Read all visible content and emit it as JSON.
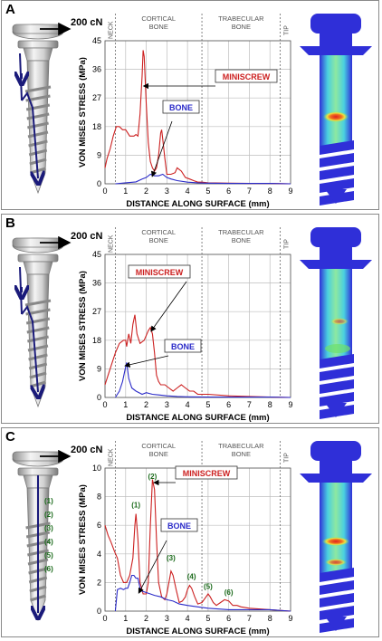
{
  "colors": {
    "miniscrew": "#cc2020",
    "bone": "#2a2ac8",
    "screw_arrow": "#1a1a7a",
    "fem_blue": "#2f2fd8",
    "fem_cyan": "#4ad0e0",
    "fem_green": "#6ee06a",
    "fem_yellow": "#f0e040",
    "fem_red": "#e02020"
  },
  "icons": [
    "miniscrew-drawing-icon",
    "force-arrow-icon",
    "fem-stress-model-icon"
  ],
  "panels": [
    {
      "letter": "A",
      "force_label": "200 cN",
      "region_labels": [
        "NECK",
        "CORTICAL BONE",
        "TRABECULAR BONE",
        "TIP"
      ],
      "callouts": [
        "MINISCREW",
        "BONE"
      ],
      "chart_data": {
        "type": "line",
        "xlabel": "DISTANCE ALONG SURFACE (mm)",
        "ylabel": "VON MISES STRESS (MPa)",
        "xlim": [
          0,
          9
        ],
        "ylim": [
          0,
          45
        ],
        "xticks": [
          "0",
          "1",
          "2",
          "3",
          "4",
          "5",
          "6",
          "7",
          "8",
          "9"
        ],
        "yticks": [
          "0",
          "9",
          "18",
          "27",
          "36",
          "45"
        ],
        "region_boundaries_mm": [
          0.5,
          4.7,
          8.5
        ],
        "grid": true,
        "series": [
          {
            "name": "MINISCREW",
            "x": [
              0,
              0.1,
              0.25,
              0.4,
              0.55,
              0.7,
              0.85,
              1.0,
              1.1,
              1.2,
              1.3,
              1.4,
              1.5,
              1.6,
              1.7,
              1.8,
              1.85,
              1.9,
              2.0,
              2.1,
              2.2,
              2.3,
              2.4,
              2.5,
              2.6,
              2.7,
              2.75,
              2.8,
              2.9,
              3.0,
              3.2,
              3.4,
              3.5,
              3.7,
              3.9,
              4.1,
              4.3,
              4.5,
              4.7,
              5,
              6,
              7,
              8,
              9
            ],
            "y": [
              5,
              8,
              11,
              15,
              18,
              18,
              17,
              17,
              16,
              15,
              15,
              15,
              15.5,
              15,
              22,
              34,
              42,
              40,
              25,
              13,
              7,
              5,
              4,
              5,
              9,
              16,
              17,
              14,
              8,
              3,
              3,
              3.5,
              5,
              4,
              2,
              1.5,
              1,
              0.5,
              0.5,
              0.3,
              0.2,
              0.1,
              0.1,
              0
            ]
          },
          {
            "name": "BONE",
            "x": [
              0.5,
              1.0,
              1.5,
              1.8,
              2.0,
              2.2,
              2.4,
              2.6,
              2.8,
              3.0,
              3.2,
              3.5,
              4.0,
              4.5,
              5,
              6,
              7,
              8,
              9
            ],
            "y": [
              0,
              0.3,
              0.6,
              1.5,
              2,
              3,
              2.5,
              2.5,
              3,
              2,
              1.5,
              1,
              0.5,
              0.3,
              0.2,
              0.1,
              0.1,
              0.1,
              0
            ]
          }
        ]
      }
    },
    {
      "letter": "B",
      "force_label": "200 cN",
      "region_labels": [
        "NECK",
        "CORTICAL BONE",
        "TRABECULAR BONE",
        "TIP"
      ],
      "callouts": [
        "MINISCREW",
        "BONE"
      ],
      "chart_data": {
        "type": "line",
        "xlabel": "DISTANCE ALONG SURFACE (mm)",
        "ylabel": "VON MISES STRESS (MPa)",
        "xlim": [
          0,
          9
        ],
        "ylim": [
          0,
          45
        ],
        "xticks": [
          "0",
          "1",
          "2",
          "3",
          "4",
          "5",
          "6",
          "7",
          "8",
          "9"
        ],
        "yticks": [
          "0",
          "9",
          "18",
          "27",
          "36",
          "45"
        ],
        "region_boundaries_mm": [
          0.5,
          4.7,
          8.5
        ],
        "grid": true,
        "series": [
          {
            "name": "MINISCREW",
            "x": [
              0,
              0.15,
              0.3,
              0.5,
              0.7,
              0.9,
              1.0,
              1.05,
              1.15,
              1.25,
              1.35,
              1.45,
              1.55,
              1.7,
              1.9,
              2.1,
              2.2,
              2.3,
              2.4,
              2.5,
              2.6,
              2.7,
              2.9,
              3.1,
              3.3,
              3.5,
              3.7,
              3.9,
              4.1,
              4.3,
              4.5,
              4.7,
              5,
              6,
              7,
              8,
              9
            ],
            "y": [
              4,
              7,
              10,
              14,
              17,
              18,
              18,
              16,
              20,
              17,
              23,
              26,
              20,
              17,
              18,
              21,
              22,
              20,
              14,
              7,
              5,
              4,
              4,
              3,
              2,
              3,
              4,
              3,
              2,
              2,
              1,
              1,
              1,
              0.5,
              0.3,
              0.1,
              0
            ]
          },
          {
            "name": "BONE",
            "x": [
              0.5,
              0.7,
              0.85,
              0.95,
              1.05,
              1.15,
              1.3,
              1.5,
              1.8,
              2.0,
              2.3,
              2.6,
              3.0,
              3.5,
              4,
              5,
              6,
              7,
              8,
              9
            ],
            "y": [
              0,
              2,
              5,
              8,
              11,
              6,
              3,
              2,
              1,
              1.5,
              1,
              0.8,
              0.5,
              0.3,
              0.2,
              0.1,
              0.1,
              0.1,
              0.1,
              0
            ]
          }
        ]
      }
    },
    {
      "letter": "C",
      "force_label": "200 cN",
      "region_labels": [
        "NECK",
        "CORTICAL BONE",
        "TRABECULAR BONE",
        "TIP"
      ],
      "callouts": [
        "MINISCREW",
        "BONE"
      ],
      "peak_labels": [
        "(1)",
        "(2)",
        "(3)",
        "(4)",
        "(5)",
        "(6)"
      ],
      "peak_positions": [
        {
          "x": 1.5,
          "y": 7.0
        },
        {
          "x": 2.3,
          "y": 9.0
        },
        {
          "x": 3.2,
          "y": 3.3
        },
        {
          "x": 4.2,
          "y": 2.0
        },
        {
          "x": 5.0,
          "y": 1.3
        },
        {
          "x": 6.0,
          "y": 0.9
        }
      ],
      "chart_data": {
        "type": "line",
        "xlabel": "DISTANCE ALONG SURFACE (mm)",
        "ylabel": "VON MISES STRESS (MPa)",
        "xlim": [
          0,
          9
        ],
        "ylim": [
          0,
          10
        ],
        "xticks": [
          "0",
          "1",
          "2",
          "3",
          "4",
          "5",
          "6",
          "7",
          "8",
          "9"
        ],
        "yticks": [
          "0",
          "2",
          "4",
          "6",
          "8",
          "10"
        ],
        "region_boundaries_mm": [
          0.5,
          4.7,
          8.5
        ],
        "grid": true,
        "series": [
          {
            "name": "MINISCREW",
            "x": [
              0,
              0.15,
              0.3,
              0.45,
              0.6,
              0.75,
              0.9,
              1.05,
              1.2,
              1.35,
              1.45,
              1.5,
              1.6,
              1.7,
              1.85,
              2.0,
              2.1,
              2.2,
              2.3,
              2.4,
              2.5,
              2.6,
              2.75,
              2.9,
              3.0,
              3.1,
              3.2,
              3.3,
              3.45,
              3.6,
              3.75,
              3.9,
              4.0,
              4.1,
              4.2,
              4.35,
              4.5,
              4.7,
              4.85,
              5.0,
              5.1,
              5.25,
              5.4,
              5.6,
              5.8,
              6.0,
              6.2,
              6.4,
              6.6,
              7,
              8,
              9
            ],
            "y": [
              6,
              5.3,
              4.8,
              4.2,
              3.7,
              2.5,
              2,
              2,
              2.5,
              3.7,
              6,
              6.8,
              5,
              2,
              1.2,
              1.2,
              2,
              6,
              9.2,
              8.5,
              5,
              2,
              1,
              0.8,
              1.2,
              2,
              2.8,
              2.5,
              1.5,
              0.6,
              0.7,
              1,
              1.5,
              1.8,
              1.6,
              1,
              0.5,
              0.6,
              0.9,
              1.2,
              1,
              0.6,
              0.4,
              0.6,
              0.8,
              0.7,
              0.4,
              0.4,
              0.3,
              0.2,
              0.1,
              0
            ]
          },
          {
            "name": "BONE",
            "x": [
              0.5,
              0.6,
              0.75,
              0.9,
              1.0,
              1.1,
              1.2,
              1.3,
              1.4,
              1.5,
              1.6,
              1.7,
              1.8,
              2.0,
              2.2,
              2.4,
              2.7,
              3.0,
              3.3,
              3.6,
              4.0,
              4.5,
              5,
              6,
              7,
              8,
              9
            ],
            "y": [
              0,
              1.5,
              1.6,
              1.5,
              1.6,
              1.6,
              2,
              2.5,
              2.5,
              2.3,
              2.3,
              1.6,
              1.4,
              1.3,
              1.2,
              1.1,
              1,
              0.8,
              0.7,
              0.5,
              0.4,
              0.3,
              0.2,
              0.1,
              0.1,
              0.1,
              0
            ]
          }
        ]
      }
    }
  ]
}
